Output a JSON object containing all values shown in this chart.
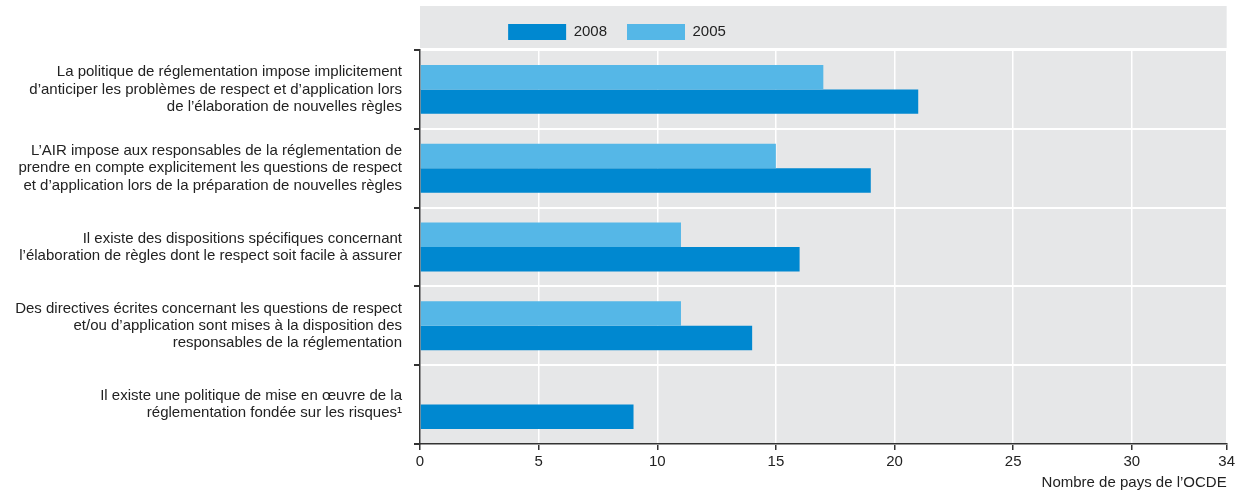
{
  "chart_data": {
    "type": "bar",
    "orientation": "horizontal",
    "categories": [
      "La politique de réglementation impose implicitement d’anticiper les problèmes de respect et d’application lors de l’élaboration de nouvelles règles",
      "L’AIR impose aux responsables de la réglementation de prendre en compte explicitement les questions de respect et d’application lors de la préparation de nouvelles règles",
      "Il existe des dispositions spécifiques concernant l’élaboration de règles dont le respect soit facile à assurer",
      "Des directives écrites concernant les questions de respect et/ou d’application sont mises à la disposition des responsables de la réglementation",
      "Il existe une politique de mise en œuvre de la réglementation fondée sur les risques¹"
    ],
    "series": [
      {
        "name": "2005",
        "color": "#55b7e7",
        "values": [
          17,
          15,
          11,
          11,
          null
        ]
      },
      {
        "name": "2008",
        "color": "#0088d0",
        "values": [
          21,
          19,
          16,
          14,
          9
        ]
      }
    ],
    "xlim": [
      0,
      34
    ],
    "xticks": [
      0,
      5,
      10,
      15,
      20,
      25,
      30,
      34
    ],
    "xlabel": "Nombre de pays de l’OCDE",
    "grid": true,
    "legend": "top"
  }
}
